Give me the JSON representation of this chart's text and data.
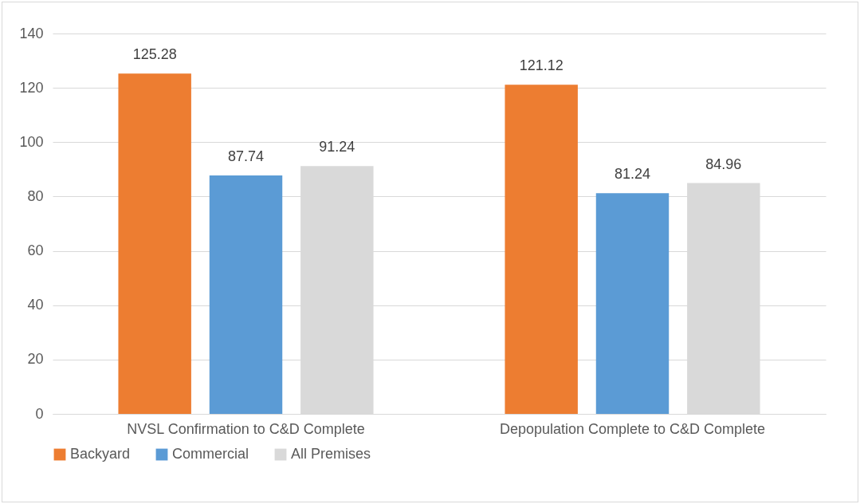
{
  "chart_data": {
    "type": "bar",
    "categories": [
      "NVSL Confirmation to C&D Complete",
      "Depopulation Complete to C&D Complete"
    ],
    "series": [
      {
        "name": "Backyard",
        "color": "#ed7d31",
        "values": [
          125.28,
          121.12
        ]
      },
      {
        "name": "Commercial",
        "color": "#5b9bd5",
        "values": [
          87.74,
          81.24
        ]
      },
      {
        "name": "All Premises",
        "color": "#d9d9d9",
        "values": [
          91.24,
          84.96
        ]
      }
    ],
    "ylim": [
      0,
      140
    ],
    "yticks": [
      0,
      20,
      40,
      60,
      80,
      100,
      120,
      140
    ],
    "grid": "y",
    "legend": "bottom",
    "data_labels": true
  }
}
